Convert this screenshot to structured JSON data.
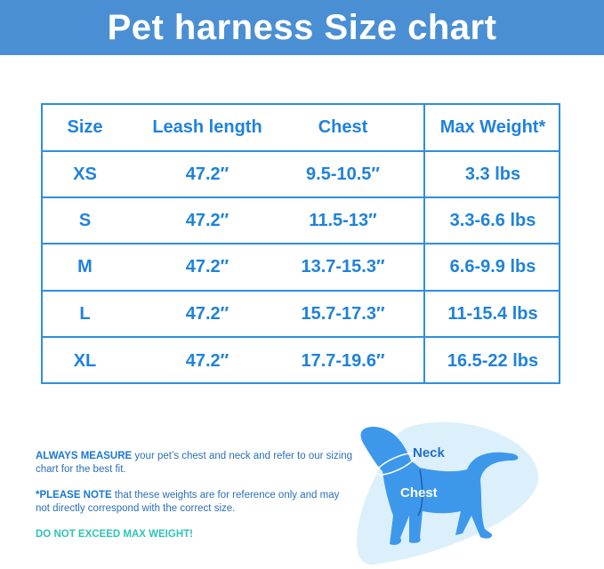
{
  "title": "Pet harness Size chart",
  "chart_data": {
    "type": "table",
    "columns": [
      "Size",
      "Leash length",
      "Chest",
      "Max Weight*"
    ],
    "rows": [
      [
        "XS",
        "47.2″",
        "9.5-10.5″",
        "3.3 lbs"
      ],
      [
        "S",
        "47.2″",
        "11.5-13″",
        "3.3-6.6 lbs"
      ],
      [
        "M",
        "47.2″",
        "13.7-15.3″",
        "6.6-9.9 lbs"
      ],
      [
        "L",
        "47.2″",
        "15.7-17.3″",
        "11-15.4 lbs"
      ],
      [
        "XL",
        "47.2″",
        "17.7-19.6″",
        "16.5-22 lbs"
      ]
    ]
  },
  "notes": {
    "measure_bold": "ALWAYS MEASURE",
    "measure_text": " your pet’s chest and neck and refer to our sizing chart for the best fit.",
    "note_bold": "*PLEASE NOTE",
    "note_text": " that these weights are for reference only and may not directly correspond with the correct size.",
    "warning": "DO NOT EXCEED MAX WEIGHT!"
  },
  "diagram": {
    "neck_label": "Neck",
    "chest_label": "Chest"
  },
  "colors": {
    "banner": "#4a8fd4",
    "text_blue": "#1f82dc",
    "warning": "#2ec4b6",
    "dog": "#3d98ec",
    "dog_bg": "#dcf0fb"
  }
}
